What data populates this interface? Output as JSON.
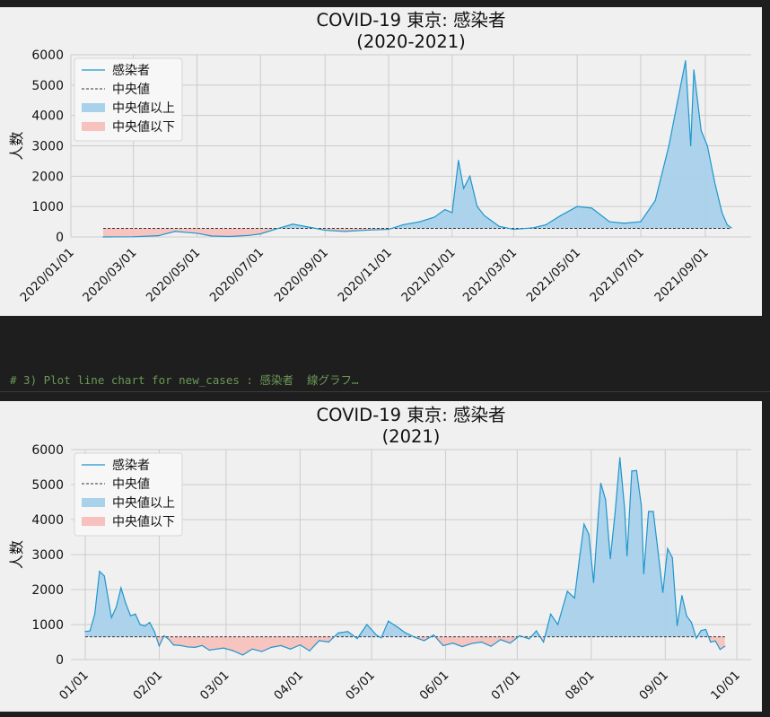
{
  "cell_comment": "# 3) Plot line chart for new_cases : 感染者  線グラフ…",
  "chart_data": [
    {
      "type": "line",
      "title_line1": "COVID-19 東京: 感染者",
      "title_line2": "(2020-2021)",
      "ylabel": "人数",
      "ylim": [
        0,
        6000
      ],
      "yticks": [
        0,
        1000,
        2000,
        3000,
        4000,
        5000,
        6000
      ],
      "xlim": [
        "2020-01-01",
        "2021-10-15"
      ],
      "xticks": [
        "2020/01/01",
        "2020/03/01",
        "2020/05/01",
        "2020/07/01",
        "2020/09/01",
        "2020/11/01",
        "2021/01/01",
        "2021/03/01",
        "2021/05/01",
        "2021/07/01",
        "2021/09/01"
      ],
      "median": 280,
      "grid": true,
      "legend_position": "top-left",
      "legend": {
        "line": "感染者",
        "median": "中央値",
        "above": "中央値以上",
        "below": "中央値以下"
      },
      "colors": {
        "line": "#1f96cd",
        "above_fill": "#a8d1ea",
        "below_fill": "#f7c1bd",
        "median": "#333333",
        "grid": "#cccccc"
      },
      "series": [
        {
          "name": "感染者",
          "points": [
            [
              "2020-02-01",
              0
            ],
            [
              "2020-03-01",
              5
            ],
            [
              "2020-03-25",
              40
            ],
            [
              "2020-04-10",
              180
            ],
            [
              "2020-04-20",
              150
            ],
            [
              "2020-05-01",
              120
            ],
            [
              "2020-05-15",
              30
            ],
            [
              "2020-06-01",
              15
            ],
            [
              "2020-06-20",
              50
            ],
            [
              "2020-07-01",
              100
            ],
            [
              "2020-07-15",
              250
            ],
            [
              "2020-08-01",
              420
            ],
            [
              "2020-08-20",
              300
            ],
            [
              "2020-09-01",
              220
            ],
            [
              "2020-09-20",
              180
            ],
            [
              "2020-10-10",
              220
            ],
            [
              "2020-11-01",
              250
            ],
            [
              "2020-11-15",
              400
            ],
            [
              "2020-12-01",
              500
            ],
            [
              "2020-12-15",
              650
            ],
            [
              "2020-12-25",
              900
            ],
            [
              "2021-01-01",
              800
            ],
            [
              "2021-01-07",
              2520
            ],
            [
              "2021-01-12",
              1600
            ],
            [
              "2021-01-18",
              2000
            ],
            [
              "2021-01-25",
              1000
            ],
            [
              "2021-02-01",
              700
            ],
            [
              "2021-02-15",
              350
            ],
            [
              "2021-03-01",
              250
            ],
            [
              "2021-03-20",
              300
            ],
            [
              "2021-04-01",
              400
            ],
            [
              "2021-04-15",
              700
            ],
            [
              "2021-05-01",
              1000
            ],
            [
              "2021-05-15",
              950
            ],
            [
              "2021-06-01",
              500
            ],
            [
              "2021-06-15",
              450
            ],
            [
              "2021-07-01",
              500
            ],
            [
              "2021-07-15",
              1200
            ],
            [
              "2021-07-28",
              3000
            ],
            [
              "2021-08-05",
              4400
            ],
            [
              "2021-08-13",
              5800
            ],
            [
              "2021-08-18",
              3000
            ],
            [
              "2021-08-21",
              5500
            ],
            [
              "2021-08-28",
              3500
            ],
            [
              "2021-09-03",
              3000
            ],
            [
              "2021-09-10",
              1800
            ],
            [
              "2021-09-17",
              800
            ],
            [
              "2021-09-22",
              400
            ],
            [
              "2021-09-26",
              300
            ]
          ]
        }
      ]
    },
    {
      "type": "line",
      "title_line1": "COVID-19 東京: 感染者",
      "title_line2": "(2021)",
      "ylabel": "人数",
      "ylim": [
        0,
        6000
      ],
      "yticks": [
        0,
        1000,
        2000,
        3000,
        4000,
        5000,
        6000
      ],
      "xlim": [
        "2020-12-26",
        "2021-10-07"
      ],
      "xticks": [
        "01/01",
        "02/01",
        "03/01",
        "04/01",
        "05/01",
        "06/01",
        "07/01",
        "08/01",
        "09/01",
        "10/01"
      ],
      "median": 650,
      "grid": true,
      "legend_position": "top-left",
      "legend": {
        "line": "感染者",
        "median": "中央値",
        "above": "中央値以上",
        "below": "中央値以下"
      },
      "colors": {
        "line": "#1f96cd",
        "above_fill": "#a8d1ea",
        "below_fill": "#f7c1bd",
        "median": "#333333",
        "grid": "#cccccc"
      },
      "series": [
        {
          "name": "感染者",
          "points": [
            [
              "2021-01-01",
              800
            ],
            [
              "2021-01-03",
              820
            ],
            [
              "2021-01-05",
              1300
            ],
            [
              "2021-01-07",
              2520
            ],
            [
              "2021-01-09",
              2390
            ],
            [
              "2021-01-12",
              1200
            ],
            [
              "2021-01-14",
              1500
            ],
            [
              "2021-01-16",
              2050
            ],
            [
              "2021-01-18",
              1600
            ],
            [
              "2021-01-20",
              1250
            ],
            [
              "2021-01-22",
              1300
            ],
            [
              "2021-01-24",
              1000
            ],
            [
              "2021-01-26",
              960
            ],
            [
              "2021-01-28",
              1060
            ],
            [
              "2021-01-30",
              800
            ],
            [
              "2021-02-01",
              390
            ],
            [
              "2021-02-03",
              680
            ],
            [
              "2021-02-05",
              580
            ],
            [
              "2021-02-07",
              420
            ],
            [
              "2021-02-10",
              400
            ],
            [
              "2021-02-13",
              360
            ],
            [
              "2021-02-16",
              350
            ],
            [
              "2021-02-19",
              400
            ],
            [
              "2021-02-22",
              270
            ],
            [
              "2021-02-25",
              300
            ],
            [
              "2021-02-28",
              330
            ],
            [
              "2021-03-04",
              250
            ],
            [
              "2021-03-08",
              130
            ],
            [
              "2021-03-12",
              300
            ],
            [
              "2021-03-16",
              230
            ],
            [
              "2021-03-20",
              350
            ],
            [
              "2021-03-24",
              400
            ],
            [
              "2021-03-28",
              300
            ],
            [
              "2021-04-01",
              420
            ],
            [
              "2021-04-05",
              250
            ],
            [
              "2021-04-09",
              540
            ],
            [
              "2021-04-13",
              500
            ],
            [
              "2021-04-17",
              760
            ],
            [
              "2021-04-21",
              800
            ],
            [
              "2021-04-25",
              600
            ],
            [
              "2021-04-29",
              1000
            ],
            [
              "2021-05-03",
              700
            ],
            [
              "2021-05-05",
              620
            ],
            [
              "2021-05-08",
              1100
            ],
            [
              "2021-05-12",
              920
            ],
            [
              "2021-05-15",
              770
            ],
            [
              "2021-05-19",
              640
            ],
            [
              "2021-05-23",
              540
            ],
            [
              "2021-05-27",
              700
            ],
            [
              "2021-05-31",
              400
            ],
            [
              "2021-06-04",
              470
            ],
            [
              "2021-06-08",
              370
            ],
            [
              "2021-06-12",
              460
            ],
            [
              "2021-06-16",
              500
            ],
            [
              "2021-06-20",
              380
            ],
            [
              "2021-06-24",
              570
            ],
            [
              "2021-06-28",
              470
            ],
            [
              "2021-07-02",
              680
            ],
            [
              "2021-07-06",
              590
            ],
            [
              "2021-07-09",
              820
            ],
            [
              "2021-07-12",
              500
            ],
            [
              "2021-07-15",
              1300
            ],
            [
              "2021-07-18",
              1000
            ],
            [
              "2021-07-22",
              1950
            ],
            [
              "2021-07-25",
              1760
            ],
            [
              "2021-07-27",
              2850
            ],
            [
              "2021-07-29",
              3870
            ],
            [
              "2021-07-31",
              3580
            ],
            [
              "2021-08-02",
              2200
            ],
            [
              "2021-08-04",
              4170
            ],
            [
              "2021-08-05",
              5040
            ],
            [
              "2021-08-07",
              4570
            ],
            [
              "2021-08-09",
              2880
            ],
            [
              "2021-08-11",
              4200
            ],
            [
              "2021-08-13",
              5770
            ],
            [
              "2021-08-15",
              4300
            ],
            [
              "2021-08-16",
              2960
            ],
            [
              "2021-08-18",
              5390
            ],
            [
              "2021-08-20",
              5400
            ],
            [
              "2021-08-22",
              4390
            ],
            [
              "2021-08-23",
              2450
            ],
            [
              "2021-08-25",
              4230
            ],
            [
              "2021-08-27",
              4230
            ],
            [
              "2021-08-29",
              3080
            ],
            [
              "2021-08-31",
              1920
            ],
            [
              "2021-09-02",
              3170
            ],
            [
              "2021-09-04",
              2910
            ],
            [
              "2021-09-06",
              970
            ],
            [
              "2021-09-08",
              1830
            ],
            [
              "2021-09-10",
              1240
            ],
            [
              "2021-09-12",
              1060
            ],
            [
              "2021-09-14",
              610
            ],
            [
              "2021-09-16",
              830
            ],
            [
              "2021-09-18",
              860
            ],
            [
              "2021-09-20",
              500
            ],
            [
              "2021-09-22",
              530
            ],
            [
              "2021-09-24",
              290
            ],
            [
              "2021-09-26",
              380
            ]
          ]
        }
      ]
    }
  ]
}
